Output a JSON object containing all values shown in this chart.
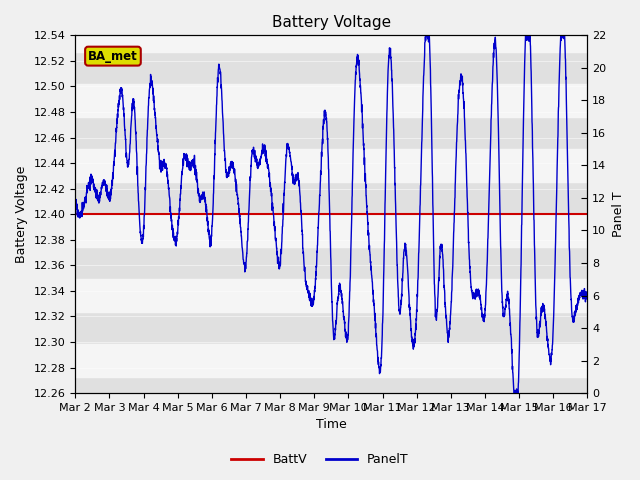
{
  "title": "Battery Voltage",
  "xlabel": "Time",
  "ylabel_left": "Battery Voltage",
  "ylabel_right": "Panel T",
  "ylim_left": [
    12.26,
    12.54
  ],
  "ylim_right": [
    0,
    22
  ],
  "battv_value": 12.4,
  "battv_color": "#cc0000",
  "panelt_color": "#0000cc",
  "background_color": "#e0e0e0",
  "band_color": "#f5f5f5",
  "annotation_text": "BA_met",
  "annotation_bg": "#dddd00",
  "annotation_border": "#aa0000",
  "x_tick_labels": [
    "Mar 2",
    "Mar 3",
    "Mar 4",
    "Mar 5",
    "Mar 6",
    "Mar 7",
    "Mar 8",
    "Mar 9",
    "Mar 10",
    "Mar 11",
    "Mar 12",
    "Mar 13",
    "Mar 14",
    "Mar 15",
    "Mar 16",
    "Mar 17"
  ],
  "right_yticks": [
    0,
    2,
    4,
    6,
    8,
    10,
    12,
    14,
    16,
    18,
    20,
    22
  ],
  "left_yticks": [
    12.26,
    12.28,
    12.3,
    12.32,
    12.34,
    12.36,
    12.38,
    12.4,
    12.42,
    12.44,
    12.46,
    12.48,
    12.5,
    12.52,
    12.54
  ],
  "legend_labels": [
    "BattV",
    "PanelT"
  ],
  "fig_width": 6.4,
  "fig_height": 4.8,
  "dpi": 100
}
